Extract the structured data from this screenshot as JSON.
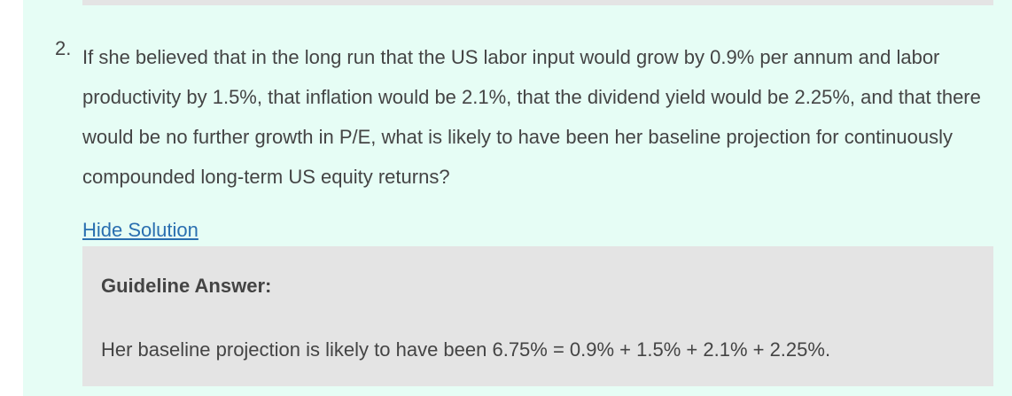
{
  "question": {
    "number": "2.",
    "text": "If she believed that in the long run that the US labor input would grow by 0.9% per annum and labor productivity by 1.5%, that inflation would be 2.1%, that the dividend yield would be 2.25%, and that there would be no further growth in P/E, what is likely to have been her baseline projection for continuously compounded long-term US equity returns?"
  },
  "solution": {
    "toggle": "Hide Solution",
    "heading": "Guideline Answer:",
    "answer": "Her baseline projection is likely to have been 6.75% = 0.9% + 1.5% + 2.1% + 2.25%."
  }
}
